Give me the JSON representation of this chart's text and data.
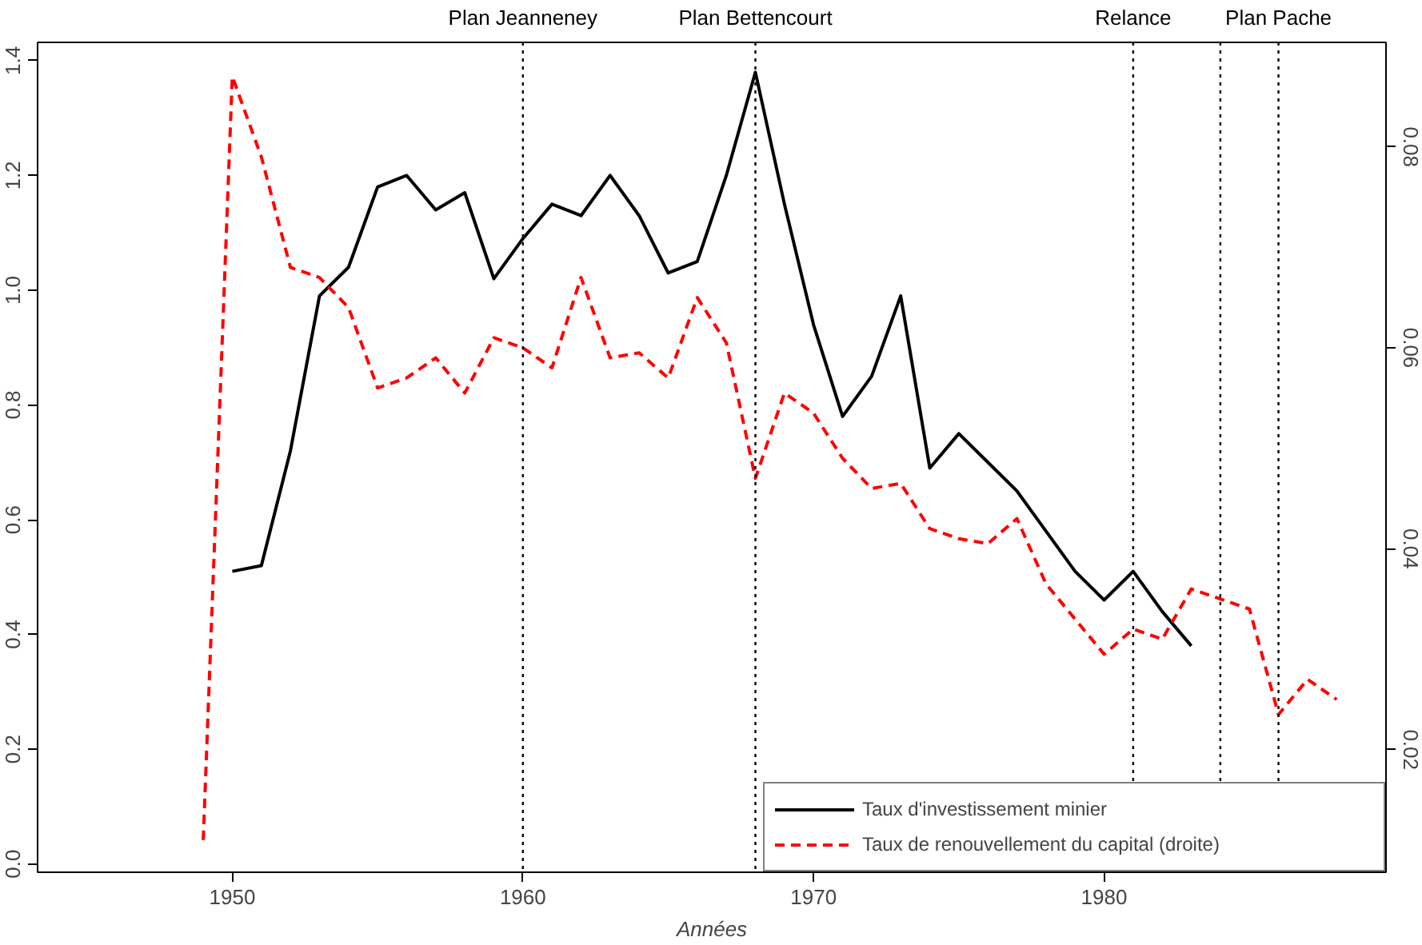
{
  "chart_data": {
    "type": "line",
    "xlabel": "Années",
    "xlim": [
      1943.3,
      1989.7
    ],
    "xticks": [
      1950,
      1960,
      1970,
      1980
    ],
    "ylim": [
      -0.0145,
      1.432
    ],
    "yticks": [
      {
        "value": 0,
        "label": "0.0"
      },
      0.2,
      0.4,
      0.6,
      0.8,
      {
        "value": 1,
        "label": "1.0"
      },
      1.2,
      1.4
    ],
    "y2lim": [
      0.0078,
      0.0904
    ],
    "y2ticks": [
      0.02,
      0.04,
      0.06,
      0.08
    ],
    "series": [
      {
        "name": "Taux d'investissement minier",
        "color": "#000000",
        "line_style": "solid",
        "x": [
          1950,
          1951,
          1952,
          1953,
          1954,
          1955,
          1956,
          1957,
          1958,
          1959,
          1960,
          1961,
          1962,
          1963,
          1964,
          1965,
          1966,
          1967,
          1968,
          1969,
          1970,
          1971,
          1972,
          1973,
          1974,
          1975,
          1976,
          1977,
          1978,
          1979,
          1980,
          1981,
          1982,
          1983
        ],
        "values": [
          0.51,
          0.52,
          0.72,
          0.99,
          1.04,
          1.18,
          1.2,
          1.14,
          1.17,
          1.02,
          1.09,
          1.15,
          1.13,
          1.2,
          1.13,
          1.03,
          1.05,
          1.2,
          1.38,
          1.15,
          0.94,
          0.78,
          0.85,
          0.99,
          0.69,
          0.75,
          0.7,
          0.65,
          0.58,
          0.51,
          0.46,
          0.51,
          0.44,
          0.38
        ]
      },
      {
        "name": "Taux de renouvellement du capital (droite)",
        "color": "#ff0000",
        "line_style": "dashed",
        "axis": "y2",
        "x": [
          1949,
          1950,
          1951,
          1952,
          1953,
          1954,
          1955,
          1956,
          1957,
          1958,
          1959,
          1960,
          1961,
          1962,
          1963,
          1964,
          1965,
          1966,
          1967,
          1968,
          1969,
          1970,
          1971,
          1972,
          1973,
          1974,
          1975,
          1976,
          1977,
          1978,
          1979,
          1980,
          1981,
          1982,
          1983,
          1984,
          1985,
          1986,
          1987,
          1988
        ],
        "values": [
          0.011,
          0.087,
          0.079,
          0.068,
          0.067,
          0.064,
          0.056,
          0.057,
          0.059,
          0.0555,
          0.061,
          0.06,
          0.058,
          0.067,
          0.059,
          0.0595,
          0.057,
          0.065,
          0.0605,
          0.047,
          0.0555,
          0.0535,
          0.049,
          0.046,
          0.0465,
          0.042,
          0.041,
          0.0405,
          0.043,
          0.0365,
          0.033,
          0.0295,
          0.032,
          0.031,
          0.036,
          0.035,
          0.034,
          0.0235,
          0.027,
          0.025
        ]
      }
    ],
    "ref_lines": [
      {
        "axis": "x",
        "value": 1960,
        "label": "Plan Jeanneney",
        "color": "#000000",
        "line_style": "dotted"
      },
      {
        "axis": "x",
        "value": 1968,
        "label": "Plan Bettencourt",
        "color": "#000000",
        "line_style": "dotted"
      },
      {
        "axis": "x",
        "value": 1981,
        "label": "Relance",
        "color": "#000000",
        "line_style": "dotted"
      },
      {
        "axis": "x",
        "value": 1984,
        "label": null,
        "color": "#000000",
        "line_style": "dotted"
      },
      {
        "axis": "x",
        "value": 1986,
        "label": "Plan Pache",
        "color": "#000000",
        "line_style": "dotted"
      }
    ],
    "legend": "bottom right",
    "grid": false
  }
}
